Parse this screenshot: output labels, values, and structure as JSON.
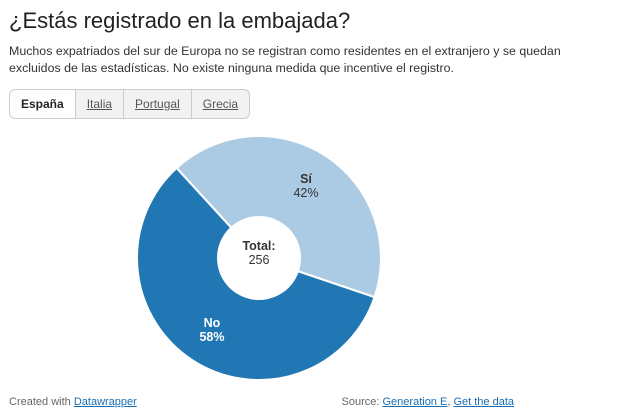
{
  "header": {
    "title": "¿Estás registrado en la embajada?",
    "description": "Muchos expatriados del sur de Europa no se registran como residentes en el extranjero y se quedan excluidos de las estadísticas. No existe ninguna medida que incentive el registro."
  },
  "tabs": [
    {
      "label": "España",
      "active": true
    },
    {
      "label": "Italia",
      "active": false
    },
    {
      "label": "Portugal",
      "active": false
    },
    {
      "label": "Grecia",
      "active": false
    }
  ],
  "chart_data": {
    "type": "pie",
    "style": "donut",
    "title": "¿Estás registrado en la embajada?",
    "center_label": "Total:",
    "total": 256,
    "slices": [
      {
        "label": "Sí",
        "value": 42,
        "display": "42%",
        "color": "#abcbe5"
      },
      {
        "label": "No",
        "value": 58,
        "display": "58%",
        "color": "#2077b4"
      }
    ]
  },
  "footer": {
    "created_prefix": "Created with",
    "created_link": "Datawrapper",
    "source_prefix": "Source:",
    "source_link": "Generation E",
    "source_separator": ",",
    "data_link": "Get the data"
  }
}
